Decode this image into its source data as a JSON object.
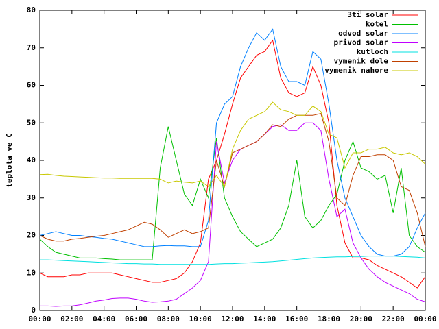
{
  "chart_data": {
    "type": "line",
    "ylabel": "teplota ve C",
    "x": [
      0,
      0.5,
      1,
      1.5,
      2,
      2.5,
      3,
      3.5,
      4,
      4.5,
      5,
      5.5,
      6,
      6.5,
      7,
      7.5,
      8,
      8.5,
      9,
      9.5,
      10,
      10.5,
      11,
      11.5,
      12,
      12.5,
      13,
      13.5,
      14,
      14.5,
      15,
      15.5,
      16,
      16.5,
      17,
      17.5,
      18,
      18.5,
      19,
      19.5,
      20,
      20.5,
      21,
      21.5,
      22,
      22.5,
      23,
      23.5,
      24
    ],
    "xlim": [
      0,
      24
    ],
    "xticks": [
      {
        "value": 0,
        "label": "00:00"
      },
      {
        "value": 2,
        "label": "02:00"
      },
      {
        "value": 4,
        "label": "04:00"
      },
      {
        "value": 6,
        "label": "06:00"
      },
      {
        "value": 8,
        "label": "08:00"
      },
      {
        "value": 10,
        "label": "10:00"
      },
      {
        "value": 12,
        "label": "12:00"
      },
      {
        "value": 14,
        "label": "14:00"
      },
      {
        "value": 16,
        "label": "16:00"
      },
      {
        "value": 18,
        "label": "18:00"
      },
      {
        "value": 20,
        "label": "20:00"
      },
      {
        "value": 22,
        "label": "22:00"
      },
      {
        "value": 24,
        "label": "00:00"
      }
    ],
    "ylim": [
      0,
      80
    ],
    "yticks": [
      0,
      10,
      20,
      30,
      40,
      50,
      60,
      70,
      80
    ],
    "grid": false,
    "legend": "top-right",
    "series": [
      {
        "name": "3ti solar",
        "color": "#ff0000",
        "values": [
          10,
          9,
          9,
          9,
          9.5,
          9.5,
          10,
          10,
          10,
          10,
          9.5,
          9,
          8.5,
          8,
          7.5,
          7.5,
          8,
          8.5,
          10,
          13,
          18,
          35,
          40,
          47,
          55,
          62,
          65,
          68,
          69,
          72,
          62,
          58,
          57,
          58,
          65,
          60,
          50,
          28,
          18,
          14,
          14,
          13.5,
          12,
          11,
          10,
          9,
          7.5,
          6,
          9
        ]
      },
      {
        "name": "kotel",
        "color": "#00c000",
        "values": [
          19,
          17,
          15.5,
          15,
          14.5,
          14,
          14,
          14,
          13.8,
          13.7,
          13.5,
          13.5,
          13.5,
          13.5,
          13.5,
          38,
          49,
          40,
          31,
          28,
          35,
          30,
          46,
          30,
          25,
          21,
          19,
          17,
          18,
          19,
          22,
          28,
          40,
          25,
          22,
          24,
          28,
          31,
          40,
          45,
          38,
          37,
          35,
          36,
          26,
          38,
          20,
          17,
          15.5
        ]
      },
      {
        "name": "odvod solar",
        "color": "#0080ff",
        "values": [
          20,
          20.5,
          21,
          20.5,
          20,
          20,
          19.7,
          19.5,
          19.2,
          19,
          18.5,
          18,
          17.5,
          17,
          17,
          17.2,
          17.3,
          17.2,
          17.2,
          17,
          17,
          24,
          50,
          55,
          57,
          65,
          70,
          74,
          72,
          75,
          65,
          61,
          61,
          60,
          69,
          67,
          55,
          40,
          30,
          25,
          20,
          17,
          15,
          14.5,
          14.5,
          15,
          17,
          22,
          26
        ]
      },
      {
        "name": "privod solar",
        "color": "#c000ff",
        "values": [
          1.2,
          1.2,
          1.1,
          1.2,
          1.2,
          1.5,
          2,
          2.5,
          2.8,
          3.2,
          3.3,
          3.3,
          3,
          2.5,
          2.2,
          2.3,
          2.5,
          3,
          4.5,
          6,
          8,
          13,
          45,
          34,
          40,
          43,
          44,
          45,
          47,
          49,
          49.5,
          48,
          48,
          50,
          50,
          48,
          35,
          25,
          27,
          18,
          14,
          11,
          9,
          7.5,
          6.5,
          5.5,
          4.5,
          3,
          2.3
        ]
      },
      {
        "name": "kutloch",
        "color": "#00e0e0",
        "values": [
          13.5,
          13.5,
          13.4,
          13.3,
          13.2,
          13.1,
          13,
          12.9,
          12.8,
          12.7,
          12.6,
          12.5,
          12.5,
          12.4,
          12.4,
          12.3,
          12.3,
          12.3,
          12.3,
          12.3,
          12.3,
          12.3,
          12.4,
          12.5,
          12.5,
          12.6,
          12.7,
          12.8,
          12.9,
          13,
          13.2,
          13.4,
          13.6,
          13.8,
          14,
          14.1,
          14.2,
          14.3,
          14.3,
          14.4,
          14.4,
          14.5,
          14.5,
          14.5,
          14.5,
          14.4,
          14.3,
          14.2,
          14
        ]
      },
      {
        "name": "vymenik dole",
        "color": "#c04000",
        "values": [
          20,
          19,
          18.5,
          18.5,
          19,
          19.2,
          19.5,
          19.8,
          20,
          20.5,
          21,
          21.5,
          22.5,
          23.5,
          23,
          21.5,
          19.5,
          20.5,
          21.5,
          20.5,
          21,
          22,
          40,
          33,
          42,
          43,
          44,
          45,
          47,
          49.5,
          49,
          51,
          52,
          52,
          52,
          52.5,
          45,
          30,
          28,
          36,
          41,
          41,
          41.5,
          41.5,
          40,
          33,
          32,
          26,
          17
        ]
      },
      {
        "name": "vymenik nahore",
        "color": "#c8c800",
        "values": [
          36.2,
          36.3,
          36,
          35.8,
          35.7,
          35.6,
          35.5,
          35.4,
          35.3,
          35.3,
          35.2,
          35.2,
          35.2,
          35.2,
          35.2,
          35,
          34,
          34.5,
          34.2,
          34,
          34.5,
          33,
          36,
          33,
          43,
          48,
          51,
          52,
          53,
          55.5,
          53.5,
          53,
          52,
          52,
          54.5,
          53,
          47,
          46,
          38,
          42,
          42,
          43,
          43,
          43.5,
          42,
          41.5,
          42,
          41,
          39
        ]
      }
    ]
  }
}
